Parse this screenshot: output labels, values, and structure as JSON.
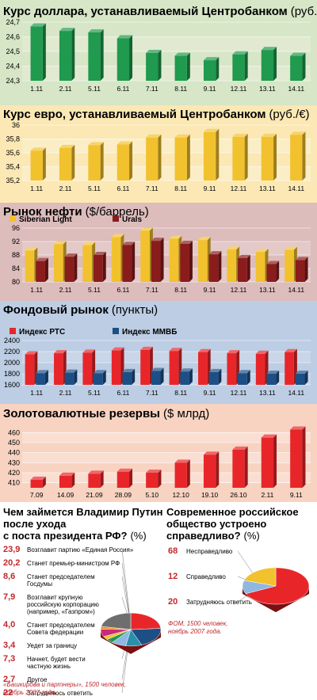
{
  "panels": {
    "usd": {
      "title": "Курс доллара, устанавливаемый Центробанком",
      "unit": "(руб./$)"
    },
    "eur": {
      "title": "Курс евро, устанавливаемый Центробанком",
      "unit": "(руб./€)"
    },
    "oil": {
      "title": "Рынок нефти",
      "unit": "($/баррель)"
    },
    "stock": {
      "title": "Фондовый рынок",
      "unit": "(пункты)"
    },
    "gold": {
      "title": "Золотовалютные резервы",
      "unit": "($ млрд)"
    }
  },
  "chart_data": [
    {
      "type": "bar",
      "title": "Курс доллара, устанавливаемый Центробанком (руб./$)",
      "categories": [
        "1.11",
        "2.11",
        "5.11",
        "6.11",
        "7.11",
        "8.11",
        "9.11",
        "12.11",
        "13.11",
        "14.11"
      ],
      "series": [
        {
          "values": [
            24.67,
            24.64,
            24.63,
            24.59,
            24.49,
            24.47,
            24.44,
            24.48,
            24.51,
            24.47
          ]
        }
      ],
      "yticks": [
        24.3,
        24.4,
        24.5,
        24.6,
        24.7
      ],
      "ylim": [
        24.3,
        24.7
      ],
      "colors": {
        "bar": "#1f9a4e",
        "band": "#e6ebd6"
      }
    },
    {
      "type": "bar",
      "title": "Курс евро, устанавливаемый Центробанком (руб./€)",
      "categories": [
        "1.11",
        "2.11",
        "5.11",
        "6.11",
        "7.11",
        "8.11",
        "9.11",
        "12.11",
        "13.11",
        "14.11"
      ],
      "series": [
        {
          "values": [
            35.63,
            35.67,
            35.71,
            35.72,
            35.82,
            35.82,
            35.9,
            35.83,
            35.83,
            35.86
          ]
        }
      ],
      "yticks": [
        35.2,
        35.4,
        35.6,
        35.8,
        36.0
      ],
      "ylim": [
        35.2,
        36.0
      ],
      "colors": {
        "bar": "#f2c12e",
        "band": "#fbf1cf"
      }
    },
    {
      "type": "bar",
      "title": "Рынок нефти ($/баррель)",
      "categories": [
        "1.11",
        "2.11",
        "5.11",
        "6.11",
        "7.11",
        "8.11",
        "9.11",
        "12.11",
        "13.11",
        "14.11"
      ],
      "series": [
        {
          "name": "Siberian Light",
          "values": [
            89.3,
            91.2,
            90.9,
            93.3,
            95.2,
            92.8,
            92.4,
            89.6,
            88.9,
            89.5
          ]
        },
        {
          "name": "Urals",
          "values": [
            86.2,
            87.5,
            88.0,
            91.0,
            92.2,
            91.3,
            88.2,
            87.1,
            85.3,
            86.5
          ]
        }
      ],
      "yticks": [
        80,
        84,
        88,
        92,
        96
      ],
      "ylim": [
        80,
        96
      ],
      "colors": {
        "s1": "#f2c12e",
        "s2": "#8a1c1c",
        "band": "#e7cfcf"
      }
    },
    {
      "type": "bar",
      "title": "Фондовый рынок (пункты)",
      "categories": [
        "1.11",
        "2.11",
        "5.11",
        "6.11",
        "7.11",
        "8.11",
        "9.11",
        "12.11",
        "13.11",
        "14.11"
      ],
      "series": [
        {
          "name": "Индекс РТС",
          "values": [
            2150,
            2170,
            2180,
            2220,
            2230,
            2210,
            2190,
            2170,
            2160,
            2190
          ]
        },
        {
          "name": "Индекс ММВБ",
          "values": [
            1810,
            1820,
            1810,
            1830,
            1850,
            1840,
            1830,
            1810,
            1800,
            1800
          ]
        }
      ],
      "yticks": [
        1600,
        1800,
        2000,
        2200,
        2400
      ],
      "ylim": [
        1600,
        2400
      ],
      "colors": {
        "s1": "#e8262a",
        "s2": "#1d4f86",
        "band": "#cfd9e9"
      }
    },
    {
      "type": "bar",
      "title": "Золотовалютные резервы ($ млрд)",
      "categories": [
        "7.09",
        "14.09",
        "21.09",
        "28.09",
        "5.10",
        "12.10",
        "19.10",
        "26.10",
        "2.11",
        "9.11"
      ],
      "series": [
        {
          "values": [
            413,
            417,
            419,
            421,
            420,
            430,
            438,
            443,
            455,
            463
          ]
        }
      ],
      "yticks": [
        410,
        420,
        430,
        440,
        450,
        460
      ],
      "ylim": [
        405,
        465
      ],
      "colors": {
        "bar": "#e8262a",
        "band": "#fbe3d8"
      }
    },
    {
      "type": "pie",
      "title": "Чем займется Владимир Путин после ухода с поста президента РФ? (%)",
      "categories": [
        "Возглавит партию «Единая Россия»",
        "Станет премьер-министром РФ",
        "Станет председателем Госдумы",
        "Возглавит крупную российскую корпорацию (например, «Газпром»)",
        "Станет председателем Совета федерации",
        "Уедет за границу",
        "Начнет, будет вести частную жизнь",
        "Другое",
        "Затрудняюсь ответить"
      ],
      "values": [
        23.9,
        20.2,
        8.6,
        7.9,
        4.0,
        3.4,
        7.3,
        2.7,
        22.0
      ],
      "labels": [
        "23,9",
        "20,2",
        "8,6",
        "7,9",
        "4,0",
        "3,4",
        "7,3",
        "2,7",
        "22"
      ],
      "colors": [
        "#e8262a",
        "#1d4f86",
        "#2a8fa8",
        "#8fb7e0",
        "#1f9a4e",
        "#f2c12e",
        "#c92a7a",
        "#f08a24",
        "#6e6e6e"
      ]
    },
    {
      "type": "pie",
      "title": "Современное российское общество устроено справедливо? (%)",
      "categories": [
        "Несправедливо",
        "Справедливо",
        "Затрудняюсь ответить"
      ],
      "values": [
        68,
        12,
        20
      ],
      "labels": [
        "68",
        "12",
        "20"
      ],
      "colors": [
        "#e8262a",
        "#8fb7e0",
        "#f2c12e"
      ]
    }
  ],
  "survey_left": {
    "title_line1": "Чем займется Владимир Путин",
    "title_line2": "после ухода",
    "title_line3": "с поста президента РФ?",
    "unit": "(%)",
    "labels": [
      [
        "Возглавит партию «Единая Россия»"
      ],
      [
        "Станет премьер-министром РФ"
      ],
      [
        "Станет председателем",
        "Госдумы"
      ],
      [
        "Возглавит крупную",
        "российскую корпорацию",
        "(например, «Газпром»)"
      ],
      [
        "Станет председателем",
        "Совета федерации"
      ],
      [
        "Уедет за границу"
      ],
      [
        "Начнет, будет вести",
        "частную жизнь"
      ],
      [
        "Другое"
      ],
      [
        "Затрудняюсь ответить"
      ]
    ],
    "source_line1": "«Башкирова и партнеры», 1500 человек,",
    "source_line2": "ноябрь 2007 года."
  },
  "survey_right": {
    "title_line1": "Современное российское",
    "title_line2": "общество устроено",
    "title_line3": "справедливо?",
    "unit": "(%)",
    "source_line1": "ФОМ, 1500 человек,",
    "source_line2": "ноябрь 2007 года."
  }
}
